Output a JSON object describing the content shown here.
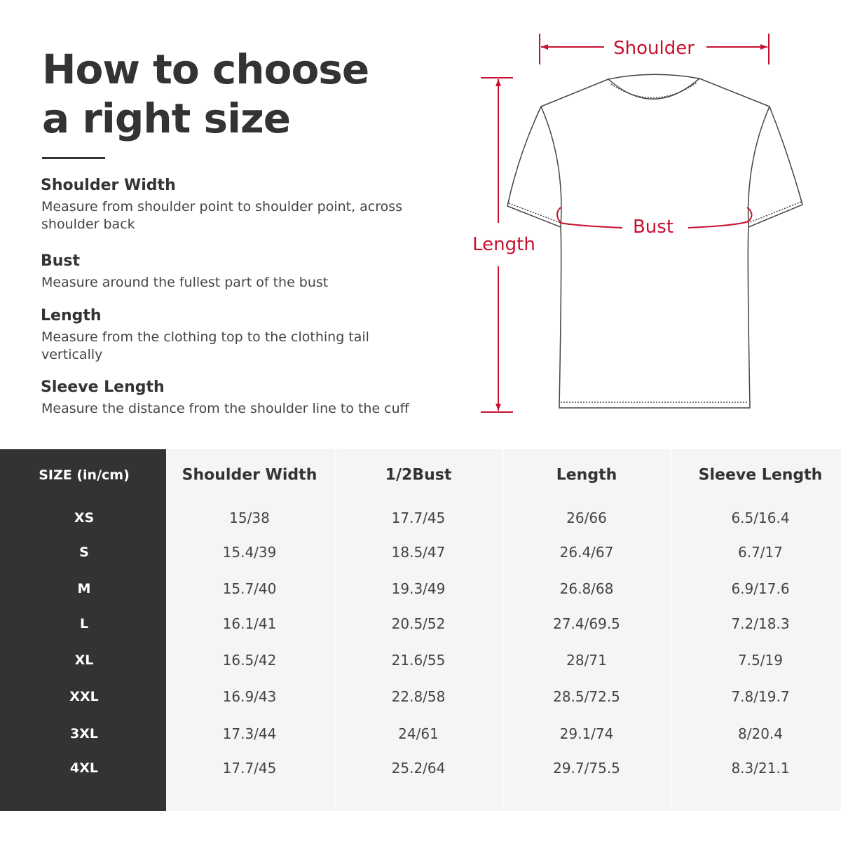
{
  "title": {
    "line1": "How to choose",
    "line2": "a right size"
  },
  "guide": [
    {
      "heading": "Shoulder Width",
      "text": "Measure from shoulder point to shoulder point, across shoulder back"
    },
    {
      "heading": "Bust",
      "text": "Measure around the fullest part of the bust"
    },
    {
      "heading": "Length",
      "text": "Measure from the clothing top to the clothing tail vertically"
    },
    {
      "heading": "Sleeve Length",
      "text": "Measure the distance from the shoulder line to the cuff"
    }
  ],
  "diagram": {
    "shoulder": "Shoulder",
    "bust": "Bust",
    "length": "Length",
    "accent": "#c8102e"
  },
  "table": {
    "headers": [
      "SIZE  (in/cm)",
      "Shoulder Width",
      "1/2Bust",
      "Length",
      "Sleeve Length"
    ],
    "rows": [
      [
        "XS",
        "15/38",
        "17.7/45",
        "26/66",
        "6.5/16.4"
      ],
      [
        "S",
        "15.4/39",
        "18.5/47",
        "26.4/67",
        "6.7/17"
      ],
      [
        "M",
        "15.7/40",
        "19.3/49",
        "26.8/68",
        "6.9/17.6"
      ],
      [
        "L",
        "16.1/41",
        "20.5/52",
        "27.4/69.5",
        "7.2/18.3"
      ],
      [
        "XL",
        "16.5/42",
        "21.6/55",
        "28/71",
        "7.5/19"
      ],
      [
        "XXL",
        "16.9/43",
        "22.8/58",
        "28.5/72.5",
        "7.8/19.7"
      ],
      [
        "3XL",
        "17.3/44",
        "24/61",
        "29.1/74",
        "8/20.4"
      ],
      [
        "4XL",
        "17.7/45",
        "25.2/64",
        "29.7/75.5",
        "8.3/21.1"
      ]
    ]
  }
}
